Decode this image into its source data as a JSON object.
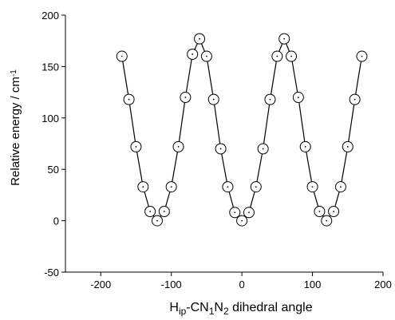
{
  "chart_data": {
    "type": "line",
    "x_label_parts": [
      "H",
      "ip",
      "-CN",
      "1",
      "N",
      "2",
      " dihedral angle"
    ],
    "y_label_parts": [
      "Relative energy / cm",
      "-1"
    ],
    "x": [
      -170,
      -160,
      -150,
      -140,
      -130,
      -120,
      -110,
      -100,
      -90,
      -80,
      -70,
      -60,
      -50,
      -40,
      -30,
      -20,
      -10,
      0,
      10,
      20,
      30,
      40,
      50,
      60,
      70,
      80,
      90,
      100,
      110,
      120,
      130,
      140,
      150,
      160,
      170
    ],
    "values": [
      160,
      118,
      72,
      33,
      9,
      0,
      9,
      33,
      72,
      120,
      162,
      177,
      160,
      118,
      70,
      33,
      8,
      0,
      8,
      33,
      70,
      118,
      160,
      177,
      160,
      120,
      72,
      33,
      9,
      0,
      9,
      33,
      72,
      118,
      160
    ],
    "color": "#000000",
    "xlim": [
      -250,
      200
    ],
    "xticks": [
      -200,
      -100,
      0,
      100,
      200
    ],
    "ylim": [
      -50,
      200
    ],
    "yticks": [
      -50,
      0,
      50,
      100,
      150,
      200
    ]
  }
}
